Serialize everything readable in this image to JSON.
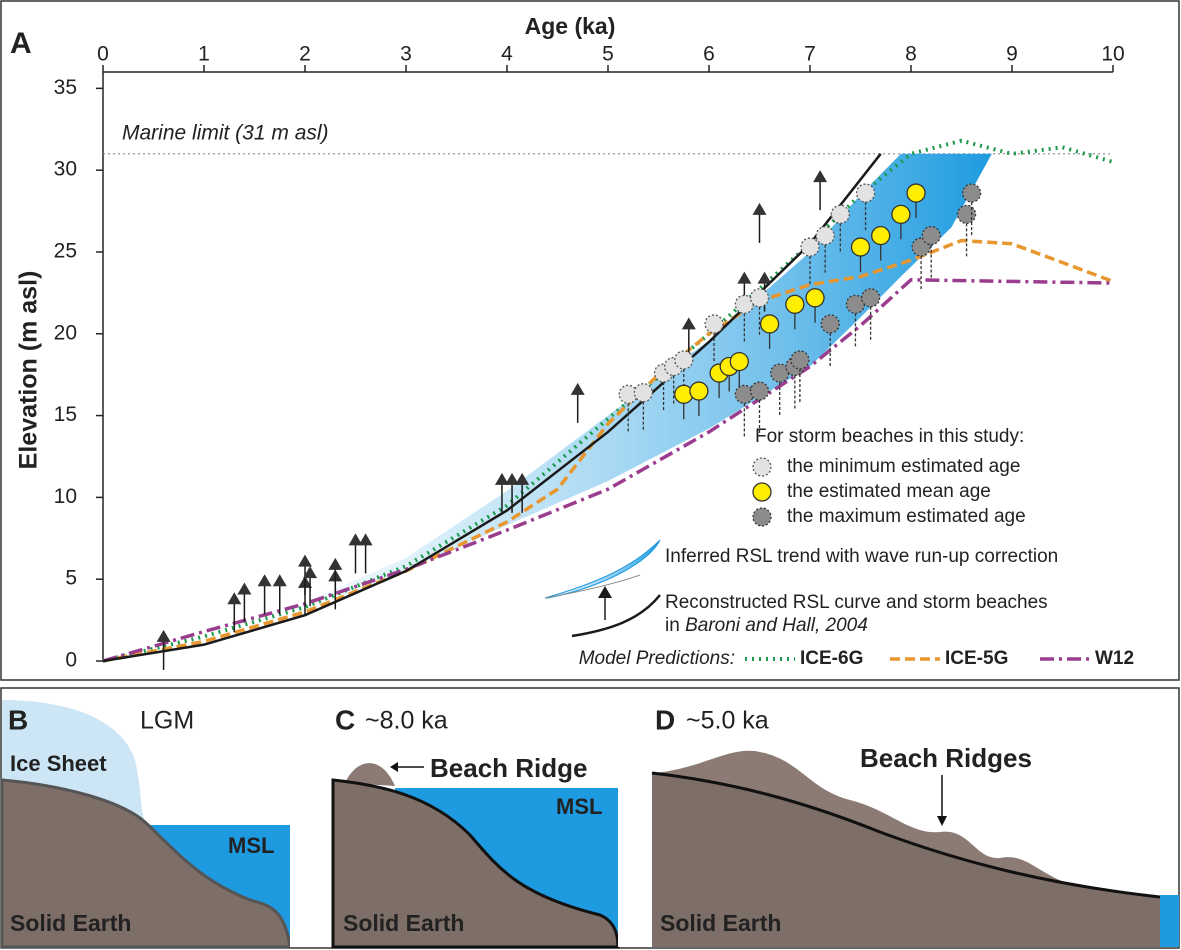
{
  "chart_data": {
    "type": "line",
    "panel_label": "A",
    "x_label": "Age (ka)",
    "y_label": "Elevation (m asl)",
    "xlim": [
      0,
      10
    ],
    "xticks": [
      0,
      1,
      2,
      3,
      4,
      5,
      6,
      7,
      8,
      9,
      10
    ],
    "ylim": [
      0,
      36
    ],
    "yticks": [
      0,
      5,
      10,
      15,
      20,
      25,
      30,
      35
    ],
    "reference_line": {
      "value": 31,
      "label": "Marine limit (31 m asl)"
    },
    "band": {
      "name": "Inferred RSL trend with wave run-up correction",
      "color": "#1e9be0",
      "x": [
        1.5,
        2,
        3,
        4,
        5,
        6,
        7,
        7.5,
        7.9,
        8.4,
        8.8
      ],
      "upper": [
        2.4,
        3.6,
        6.3,
        10.4,
        15,
        19.6,
        25,
        28.5,
        31,
        31,
        31
      ],
      "lower": [
        2.2,
        3.1,
        5.5,
        8.3,
        11,
        14.2,
        18,
        21,
        23.5,
        26.5,
        31
      ]
    },
    "baroni": {
      "name": "Reconstructed RSL curve and storm beaches",
      "ref_prefix": "in",
      "ref": "Baroni and Hall, 2004",
      "color": "#1a1a1a",
      "x": [
        0,
        1,
        2,
        3,
        4,
        5,
        6,
        7,
        7.7
      ],
      "values": [
        0,
        1,
        2.8,
        5.5,
        9.2,
        14,
        19.5,
        25.5,
        31
      ],
      "arrows": {
        "x": [
          0.6,
          1.3,
          1.4,
          1.6,
          1.75,
          2.0,
          2.0,
          2.05,
          2.3,
          2.3,
          2.5,
          2.6,
          3.95,
          4.05,
          4.15,
          4.7,
          5.8,
          6.35,
          6.5,
          6.55,
          7.1
        ],
        "values": [
          1.9,
          4.2,
          4.8,
          5.3,
          5.3,
          5.2,
          6.5,
          5.8,
          5.6,
          6.3,
          7.8,
          7.8,
          11.5,
          11.5,
          11.5,
          17,
          21,
          23.8,
          28,
          23.8,
          30
        ]
      }
    },
    "model_label": "Model Predictions:",
    "series": [
      {
        "name": "ICE-6G",
        "color": "#1a9b4b",
        "x": [
          0,
          1,
          2,
          3,
          4,
          5,
          6,
          7,
          7.5,
          8,
          8.5,
          9,
          9.5,
          10
        ],
        "values": [
          0,
          1.5,
          3.3,
          5.8,
          9.5,
          14.8,
          20,
          25.5,
          28.5,
          31,
          31.8,
          31,
          31.4,
          30.5
        ]
      },
      {
        "name": "ICE-5G",
        "color": "#e8962e",
        "x": [
          0,
          1,
          2,
          3,
          4,
          4.5,
          5,
          5.5,
          6,
          6.5,
          7,
          7.5,
          8,
          8.5,
          9,
          10
        ],
        "values": [
          0,
          1.2,
          3,
          5.5,
          8.5,
          10.5,
          14.5,
          17.5,
          20,
          22,
          23,
          23.5,
          24.5,
          25.7,
          25.5,
          23.2
        ]
      },
      {
        "name": "W12",
        "color": "#9b3d8e",
        "x": [
          0,
          1,
          2,
          3,
          4,
          5,
          6,
          7,
          7.5,
          8,
          9,
          10
        ],
        "values": [
          0,
          1.8,
          3.5,
          5.6,
          8,
          10.5,
          14,
          18,
          20.5,
          23.3,
          23.2,
          23.1
        ]
      }
    ],
    "points": {
      "title": "For storm beaches in this study:",
      "series": [
        {
          "name": "the minimum estimated age",
          "color": "#e2e2e2",
          "x": [
            5.2,
            5.35,
            5.55,
            5.65,
            5.75,
            6.05,
            6.35,
            6.5,
            7.0,
            7.15,
            7.3,
            7.55
          ],
          "values": [
            16.3,
            16.4,
            17.6,
            18,
            18.4,
            20.6,
            21.8,
            22.2,
            25.3,
            26,
            27.3,
            28.6
          ]
        },
        {
          "name": "the estimated mean age",
          "color": "#ffee00",
          "x": [
            5.75,
            5.9,
            6.1,
            6.2,
            6.3,
            6.6,
            6.85,
            7.05,
            7.5,
            7.7,
            7.9,
            8.05
          ],
          "values": [
            16.3,
            16.5,
            17.6,
            18,
            18.3,
            20.6,
            21.8,
            22.2,
            25.3,
            26,
            27.3,
            28.6
          ]
        },
        {
          "name": "the maximum estimated age",
          "color": "#8c8c8c",
          "x": [
            6.35,
            6.5,
            6.7,
            6.85,
            6.9,
            7.2,
            7.45,
            7.6,
            8.1,
            8.2,
            8.55,
            8.6
          ],
          "values": [
            16.3,
            16.5,
            17.6,
            18,
            18.4,
            20.6,
            21.8,
            22.2,
            25.3,
            26,
            27.3,
            28.6
          ]
        }
      ]
    }
  },
  "panels": {
    "B": {
      "label": "B",
      "period": "LGM",
      "ice": "Ice Sheet",
      "sea": "MSL",
      "earth": "Solid Earth"
    },
    "C": {
      "label": "C",
      "period": "~8.0 ka",
      "ridge": "Beach Ridge",
      "sea": "MSL",
      "earth": "Solid Earth"
    },
    "D": {
      "label": "D",
      "period": "~5.0 ka",
      "ridge": "Beach Ridges",
      "earth": "Solid Earth"
    }
  }
}
